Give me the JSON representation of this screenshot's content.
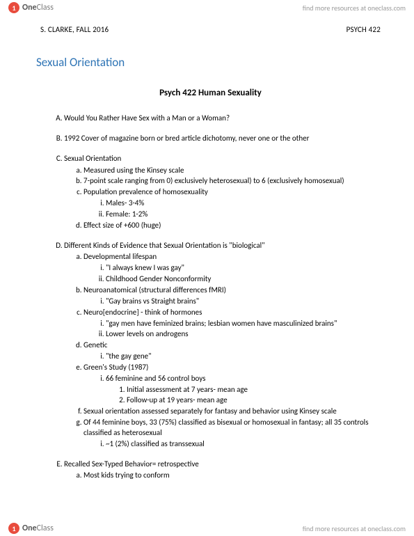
{
  "brand": {
    "one": "One",
    "class": "Class"
  },
  "cta": "find more resources at oneclass.com",
  "header": {
    "left": "S. CLARKE, FALL 2016",
    "right": "PSYCH 422"
  },
  "section_title": "Sexual Orientation",
  "doc_title": "Psych 422 Human Sexuality",
  "A": "Would You Rather Have Sex with a Man or a Woman?",
  "B": "1992 Cover of magazine born or bred article dichotomy, never one or the other",
  "C": {
    "t": "Sexual Orientation",
    "a": "Measured using the Kinsey scale",
    "b": "7-point scale ranging from 0) exclusively heterosexual) to 6 (exclusively homosexual)",
    "c": {
      "t": "Population prevalence of homosexuality",
      "i": "Males- 3-4%",
      "ii": "Female: 1-2%"
    },
    "d": "Effect size of +600 (huge)"
  },
  "D": {
    "t": "Different Kinds of Evidence that Sexual Orientation is \"biological\"",
    "a": {
      "t": "Developmental lifespan",
      "i": "\"I always knew I was gay\"",
      "ii": "Childhood Gender Nonconformity"
    },
    "b": {
      "t": "Neuroanatomical (structural differences fMRI)",
      "i": "\"Gay brains vs Straight brains\""
    },
    "c": {
      "t": "Neuro[endocrine] - think of hormones",
      "i": "\"gay men have feminized brains; lesbian women have masculinized brains\"",
      "ii": "Lower levels on androgens"
    },
    "d": {
      "t": "Genetic",
      "i": "\"the gay gene\""
    },
    "e": {
      "t": "Green's Study (1987)",
      "i": "66 feminine and 56 control boys",
      "n1": "Initial assessment at 7 years- mean age",
      "n2": "Follow-up at 19 years- mean age"
    },
    "f": "Sexual orientation assessed separately for fantasy and behavior using Kinsey scale",
    "g": {
      "t": "Of 44 feminine boys, 33 (75%) classified as bisexual or homosexual in fantasy; all 35 controls classified as heterosexual",
      "i": "~1 (2%) classified as transsexual"
    }
  },
  "E": {
    "t": "Recalled Sex-Typed Behavior= retrospective",
    "a": "Most kids trying to conform"
  }
}
